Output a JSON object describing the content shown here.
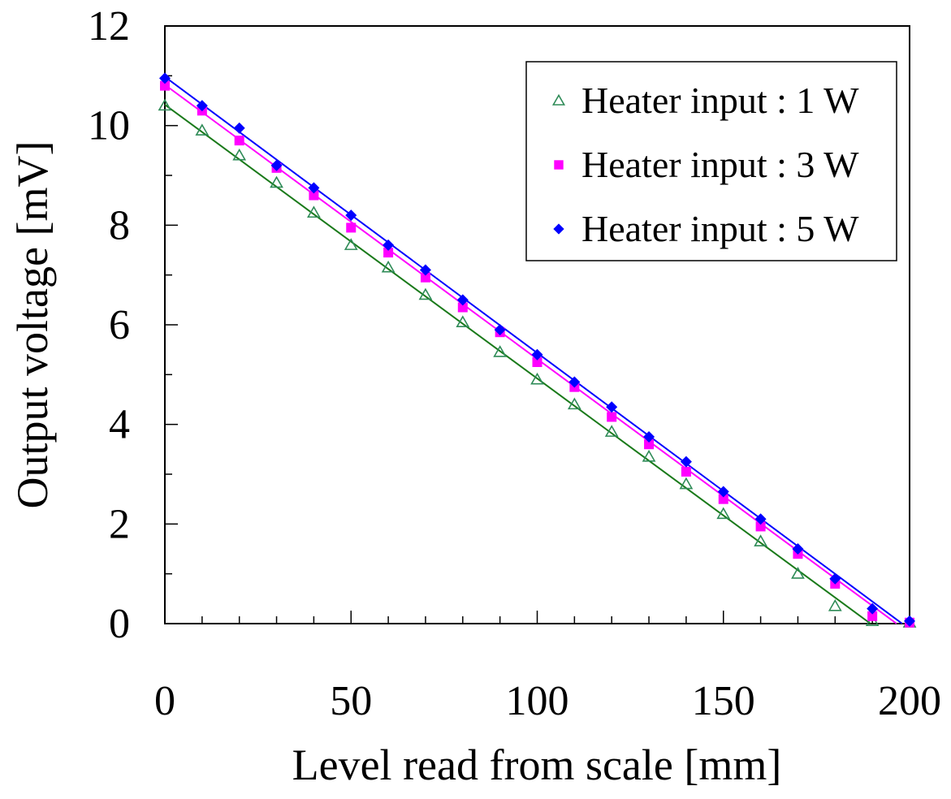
{
  "chart_data": {
    "type": "scatter",
    "title": "",
    "xlabel": "Level read from scale [mm]",
    "ylabel": "Output voltage [mV]",
    "xlim": [
      0,
      200
    ],
    "ylim": [
      0,
      12
    ],
    "x_ticks": [
      0,
      50,
      100,
      150,
      200
    ],
    "x_tick_labels": [
      "0",
      "50",
      "100",
      "150",
      "200"
    ],
    "x_minor_step": 10,
    "y_ticks": [
      0,
      2,
      4,
      6,
      8,
      10,
      12
    ],
    "y_tick_labels": [
      "0",
      "2",
      "4",
      "6",
      "8",
      "10",
      "12"
    ],
    "y_minor_step": 1,
    "grid": false,
    "legend_position": "top-right",
    "x": [
      0,
      10,
      20,
      30,
      40,
      50,
      60,
      70,
      80,
      90,
      100,
      110,
      120,
      130,
      140,
      150,
      160,
      170,
      180,
      190,
      200
    ],
    "series": [
      {
        "name": "Heater input : 1 W",
        "marker": "triangle-open",
        "color": "#2e8b57",
        "line_color": "#1a7a1a",
        "values": [
          10.4,
          9.9,
          9.4,
          8.85,
          8.25,
          7.6,
          7.15,
          6.6,
          6.05,
          5.45,
          4.9,
          4.4,
          3.85,
          3.35,
          2.8,
          2.2,
          1.65,
          1.0,
          0.35,
          0.05,
          0.02
        ],
        "fit": [
          [
            0,
            10.42
          ],
          [
            189.5,
            0
          ]
        ]
      },
      {
        "name": "Heater input : 3 W",
        "marker": "square",
        "color": "#ff00ff",
        "line_color": "#ff00ff",
        "values": [
          10.8,
          10.3,
          9.7,
          9.15,
          8.6,
          7.95,
          7.45,
          6.95,
          6.35,
          5.85,
          5.25,
          4.75,
          4.15,
          3.6,
          3.05,
          2.5,
          1.95,
          1.4,
          0.8,
          0.15,
          0.02
        ],
        "fit": [
          [
            0,
            10.82
          ],
          [
            196.5,
            0
          ]
        ]
      },
      {
        "name": "Heater input : 5 W",
        "marker": "diamond",
        "color": "#0000ff",
        "line_color": "#0000ff",
        "values": [
          10.95,
          10.4,
          9.95,
          9.2,
          8.75,
          8.2,
          7.6,
          7.1,
          6.5,
          5.9,
          5.4,
          4.85,
          4.35,
          3.75,
          3.25,
          2.65,
          2.1,
          1.5,
          0.9,
          0.3,
          0.05
        ],
        "fit": [
          [
            0,
            10.98
          ],
          [
            198,
            0
          ]
        ]
      }
    ]
  }
}
